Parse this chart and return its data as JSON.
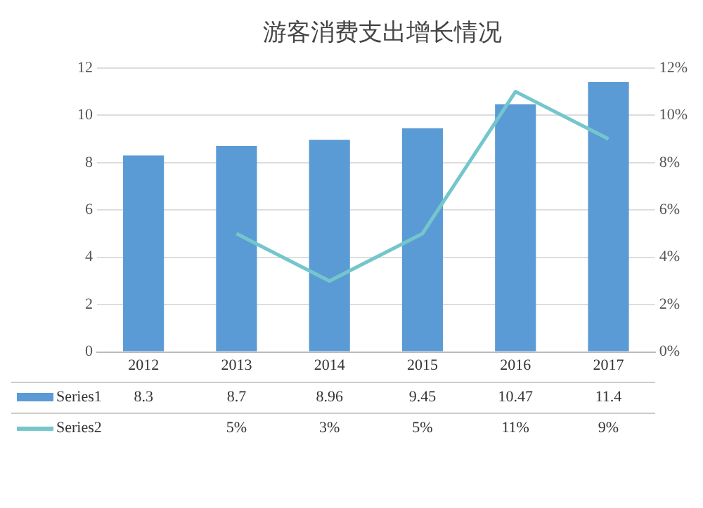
{
  "chart_data": {
    "type": "bar",
    "title": "游客消费支出增长情况",
    "categories": [
      "2012",
      "2013",
      "2014",
      "2015",
      "2016",
      "2017"
    ],
    "series": [
      {
        "name": "Series1",
        "color": "#5b9bd5",
        "values": [
          8.3,
          8.7,
          8.96,
          9.45,
          10.47,
          11.4
        ],
        "value_labels": [
          "8.3",
          "8.7",
          "8.96",
          "9.45",
          "10.47",
          "11.4"
        ]
      },
      {
        "name": "Series2",
        "type": "line",
        "axis": "y2",
        "color": "#74c6cc",
        "values": [
          null,
          5,
          3,
          5,
          11,
          9
        ],
        "value_labels": [
          null,
          "5%",
          "3%",
          "5%",
          "11%",
          "9%"
        ]
      }
    ],
    "ylim": [
      0,
      12
    ],
    "yticks": [
      0,
      2,
      4,
      6,
      8,
      10,
      12
    ],
    "y2lim": [
      0,
      12
    ],
    "y2ticks": [
      {
        "value": 0,
        "label": "0%"
      },
      {
        "value": 2,
        "label": "2%"
      },
      {
        "value": 4,
        "label": "4%"
      },
      {
        "value": 6,
        "label": "6%"
      },
      {
        "value": 8,
        "label": "8%"
      },
      {
        "value": 10,
        "label": "10%"
      },
      {
        "value": 12,
        "label": "12%"
      }
    ],
    "grid": "y",
    "legend": "bottom",
    "marker": "none",
    "line_style": "solid"
  }
}
